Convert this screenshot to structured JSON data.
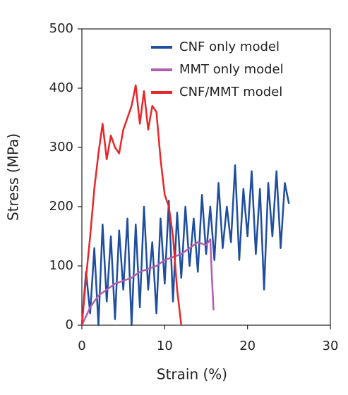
{
  "chart_data": {
    "type": "line",
    "xlabel": "Strain (%)",
    "ylabel": "Stress (MPa)",
    "xlim": [
      0,
      30
    ],
    "xticks": [
      0,
      10,
      20,
      30
    ],
    "ylim": [
      0,
      500
    ],
    "yticks": [
      0,
      100,
      200,
      300,
      400,
      500
    ],
    "legend": "upper right",
    "series": [
      {
        "name": "CNF only model",
        "color": "#1f4e9e",
        "x": [
          0,
          0.5,
          1,
          1.5,
          2,
          2.5,
          3,
          3.5,
          4,
          4.5,
          5,
          5.5,
          6,
          6.5,
          7,
          7.5,
          8,
          8.5,
          9,
          9.5,
          10,
          10.5,
          11,
          11.5,
          12,
          12.5,
          13,
          13.5,
          14,
          14.5,
          15,
          15.5,
          16,
          16.5,
          17,
          17.5,
          18,
          18.5,
          19,
          19.5,
          20,
          20.5,
          21,
          21.5,
          22,
          22.5,
          23,
          23.5,
          24,
          24.5,
          25
        ],
        "values": [
          0,
          90,
          20,
          130,
          0,
          170,
          40,
          150,
          10,
          160,
          60,
          180,
          0,
          170,
          30,
          200,
          60,
          140,
          20,
          180,
          70,
          210,
          40,
          190,
          80,
          200,
          100,
          180,
          90,
          220,
          120,
          200,
          110,
          240,
          130,
          200,
          140,
          270,
          110,
          230,
          150,
          260,
          120,
          230,
          60,
          240,
          150,
          260,
          130,
          240,
          205
        ]
      },
      {
        "name": "MMT only model",
        "color": "#b05fb0",
        "x": [
          0,
          1,
          2,
          3,
          4,
          5,
          6,
          7,
          8,
          9,
          10,
          11,
          12,
          13,
          14,
          15,
          15.5,
          15.7,
          15.9
        ],
        "values": [
          0,
          30,
          50,
          60,
          70,
          75,
          80,
          90,
          95,
          100,
          110,
          115,
          120,
          130,
          140,
          135,
          145,
          80,
          25
        ]
      },
      {
        "name": "CNF/MMT model",
        "color": "#e8262a",
        "x": [
          0,
          0.5,
          1,
          1.5,
          2,
          2.5,
          3,
          3.5,
          4,
          4.5,
          5,
          5.5,
          6,
          6.5,
          7,
          7.5,
          8,
          8.5,
          9,
          9.5,
          10,
          10.5,
          11,
          11.5,
          12
        ],
        "values": [
          0,
          80,
          150,
          230,
          290,
          340,
          280,
          320,
          300,
          290,
          330,
          350,
          370,
          405,
          340,
          395,
          330,
          370,
          360,
          280,
          220,
          200,
          150,
          60,
          0
        ]
      }
    ]
  }
}
